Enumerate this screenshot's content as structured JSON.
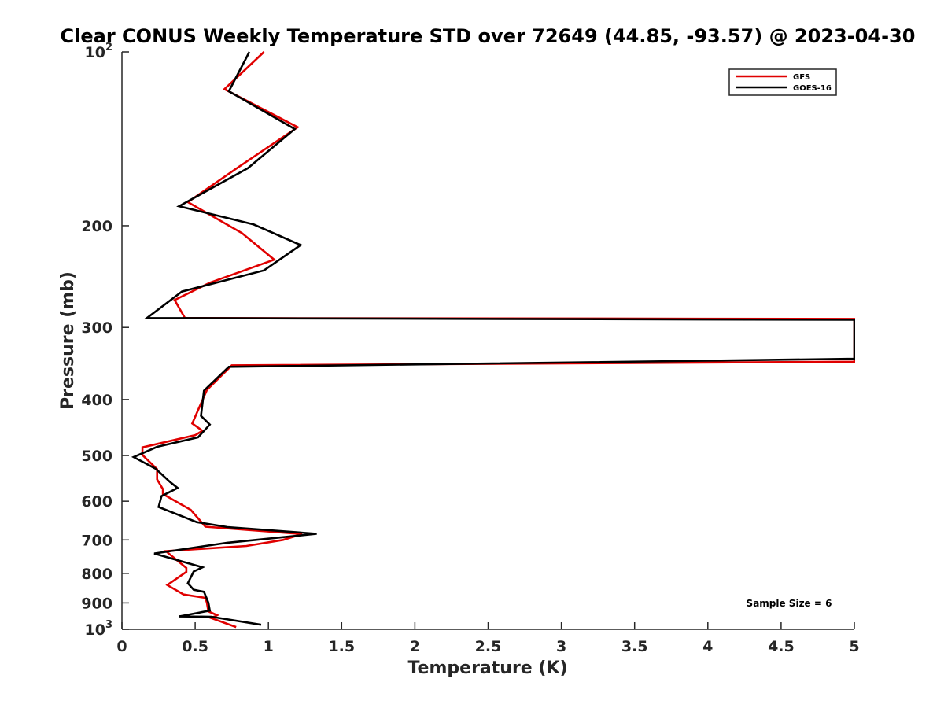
{
  "chart_data": {
    "type": "line",
    "title": "Clear CONUS Weekly Temperature STD over 72649 (44.85, -93.57) @ 2023-04-30",
    "xlabel": "Temperature (K)",
    "ylabel": "Pressure (mb)",
    "xlim": [
      0,
      5
    ],
    "ylim": [
      100,
      1000
    ],
    "y_scale": "log",
    "y_reversed": true,
    "grid": false,
    "legend_position": "top-right",
    "x_ticks": [
      "0",
      "0.5",
      "1",
      "1.5",
      "2",
      "2.5",
      "3",
      "3.5",
      "4",
      "4.5",
      "5"
    ],
    "y_ticks": [
      {
        "value": 100,
        "base": "10",
        "sup": "2"
      },
      {
        "value": 200,
        "base": "200",
        "sup": ""
      },
      {
        "value": 300,
        "base": "300",
        "sup": ""
      },
      {
        "value": 400,
        "base": "400",
        "sup": ""
      },
      {
        "value": 500,
        "base": "500",
        "sup": ""
      },
      {
        "value": 600,
        "base": "600",
        "sup": ""
      },
      {
        "value": 700,
        "base": "700",
        "sup": ""
      },
      {
        "value": 800,
        "base": "800",
        "sup": ""
      },
      {
        "value": 900,
        "base": "900",
        "sup": ""
      },
      {
        "value": 1000,
        "base": "10",
        "sup": "3"
      }
    ],
    "annotation": "Sample Size = 6",
    "series": [
      {
        "name": "GFS",
        "color": "#e00000",
        "points": [
          [
            0.97,
            100
          ],
          [
            0.7,
            116
          ],
          [
            1.2,
            135
          ],
          [
            0.8,
            158
          ],
          [
            0.45,
            182
          ],
          [
            0.82,
            206
          ],
          [
            1.04,
            229
          ],
          [
            0.6,
            251
          ],
          [
            0.36,
            269
          ],
          [
            0.43,
            289
          ],
          [
            5.0,
            290
          ],
          [
            5.0,
            344
          ],
          [
            0.75,
            349
          ],
          [
            0.58,
            385
          ],
          [
            0.48,
            440
          ],
          [
            0.55,
            453
          ],
          [
            0.5,
            461
          ],
          [
            0.14,
            484
          ],
          [
            0.14,
            499
          ],
          [
            0.24,
            528
          ],
          [
            0.24,
            550
          ],
          [
            0.28,
            572
          ],
          [
            0.28,
            583
          ],
          [
            0.47,
            621
          ],
          [
            0.57,
            664
          ],
          [
            1.23,
            684
          ],
          [
            1.1,
            700
          ],
          [
            0.85,
            717
          ],
          [
            0.3,
            732
          ],
          [
            0.44,
            783
          ],
          [
            0.44,
            795
          ],
          [
            0.31,
            838
          ],
          [
            0.42,
            870
          ],
          [
            0.57,
            882
          ],
          [
            0.58,
            899
          ],
          [
            0.59,
            931
          ],
          [
            0.65,
            945
          ],
          [
            0.61,
            956
          ],
          [
            0.78,
            991
          ]
        ]
      },
      {
        "name": "GOES-16",
        "color": "#000000",
        "points": [
          [
            0.87,
            100
          ],
          [
            0.73,
            117
          ],
          [
            1.18,
            136
          ],
          [
            0.86,
            159
          ],
          [
            0.39,
            185
          ],
          [
            0.9,
            199
          ],
          [
            1.22,
            216
          ],
          [
            0.97,
            239
          ],
          [
            0.41,
            260
          ],
          [
            0.17,
            289
          ],
          [
            5.0,
            291
          ],
          [
            5.0,
            340
          ],
          [
            0.73,
            351
          ],
          [
            0.56,
            386
          ],
          [
            0.54,
            427
          ],
          [
            0.6,
            442
          ],
          [
            0.52,
            465
          ],
          [
            0.24,
            483
          ],
          [
            0.08,
            503
          ],
          [
            0.23,
            527
          ],
          [
            0.33,
            556
          ],
          [
            0.38,
            569
          ],
          [
            0.27,
            588
          ],
          [
            0.25,
            614
          ],
          [
            0.51,
            652
          ],
          [
            0.72,
            665
          ],
          [
            1.33,
            683
          ],
          [
            0.72,
            708
          ],
          [
            0.22,
            739
          ],
          [
            0.55,
            781
          ],
          [
            0.49,
            794
          ],
          [
            0.45,
            832
          ],
          [
            0.49,
            854
          ],
          [
            0.56,
            861
          ],
          [
            0.59,
            899
          ],
          [
            0.6,
            928
          ],
          [
            0.39,
            950
          ],
          [
            0.61,
            951
          ],
          [
            0.95,
            982
          ]
        ]
      }
    ]
  }
}
